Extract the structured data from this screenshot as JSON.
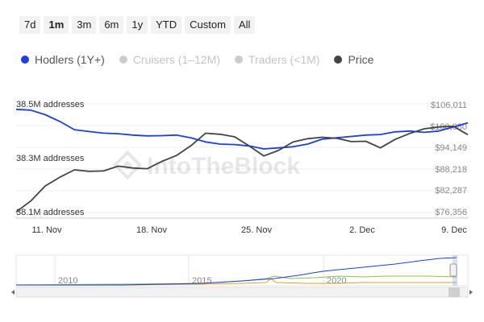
{
  "range_selector": {
    "buttons": [
      "7d",
      "1m",
      "3m",
      "6m",
      "1y",
      "YTD",
      "Custom",
      "All"
    ],
    "active": "1m"
  },
  "legend": [
    {
      "label": "Hodlers (1Y+)",
      "color": "#1a3ee8",
      "active": true
    },
    {
      "label": "Cruisers (1–12M)",
      "color": "#cccccc",
      "active": false
    },
    {
      "label": "Traders (<1M)",
      "color": "#cccccc",
      "active": false
    },
    {
      "label": "Price",
      "color": "#444444",
      "active": true
    }
  ],
  "watermark": "IntoTheBlock",
  "chart_data": {
    "type": "line",
    "title": "",
    "x_ticks": [
      "11. Nov",
      "18. Nov",
      "25. Nov",
      "2. Dec",
      "9. Dec"
    ],
    "x_range": [
      "2024-11-08",
      "2024-12-09"
    ],
    "left_axis": {
      "ticks": [
        "38.5M addresses",
        "38.3M addresses",
        "38.1M addresses"
      ],
      "min": 38.1,
      "max": 38.5,
      "unit": "M addresses"
    },
    "right_axis": {
      "ticks": [
        "$106,011",
        "$100,080",
        "$94,149",
        "$88,218",
        "$82,287",
        "$76,356"
      ],
      "min": 76356,
      "max": 106011
    },
    "grid": true,
    "series": [
      {
        "name": "Hodlers (1Y+)",
        "axis": "left",
        "color": "#1a3ee8",
        "x": [
          "2024-11-08",
          "2024-11-09",
          "2024-11-10",
          "2024-11-11",
          "2024-11-12",
          "2024-11-13",
          "2024-11-14",
          "2024-11-15",
          "2024-11-16",
          "2024-11-17",
          "2024-11-18",
          "2024-11-19",
          "2024-11-20",
          "2024-11-21",
          "2024-11-22",
          "2024-11-23",
          "2024-11-24",
          "2024-11-25",
          "2024-11-26",
          "2024-11-27",
          "2024-11-28",
          "2024-11-29",
          "2024-11-30",
          "2024-12-01",
          "2024-12-02",
          "2024-12-03",
          "2024-12-04",
          "2024-12-05",
          "2024-12-06",
          "2024-12-07",
          "2024-12-08",
          "2024-12-09"
        ],
        "values": [
          38.48,
          38.477,
          38.46,
          38.435,
          38.405,
          38.398,
          38.392,
          38.39,
          38.385,
          38.382,
          38.383,
          38.385,
          38.375,
          38.36,
          38.352,
          38.35,
          38.345,
          38.334,
          38.338,
          38.342,
          38.352,
          38.37,
          38.375,
          38.38,
          38.385,
          38.387,
          38.397,
          38.4,
          38.395,
          38.4,
          38.415,
          38.43
        ]
      },
      {
        "name": "Price",
        "axis": "right",
        "color": "#444444",
        "x": [
          "2024-11-08",
          "2024-11-09",
          "2024-11-10",
          "2024-11-11",
          "2024-11-12",
          "2024-11-13",
          "2024-11-14",
          "2024-11-15",
          "2024-11-16",
          "2024-11-17",
          "2024-11-18",
          "2024-11-19",
          "2024-11-20",
          "2024-11-21",
          "2024-11-22",
          "2024-11-23",
          "2024-11-24",
          "2024-11-25",
          "2024-11-26",
          "2024-11-27",
          "2024-11-28",
          "2024-11-29",
          "2024-11-30",
          "2024-12-01",
          "2024-12-02",
          "2024-12-03",
          "2024-12-04",
          "2024-12-05",
          "2024-12-06",
          "2024-12-07",
          "2024-12-08",
          "2024-12-09"
        ],
        "values": [
          76500,
          79500,
          83600,
          86000,
          88000,
          87600,
          87700,
          89000,
          88500,
          88300,
          90300,
          91900,
          94600,
          98000,
          97700,
          97000,
          94500,
          91800,
          93300,
          95600,
          96500,
          96900,
          96600,
          95700,
          95800,
          94000,
          96300,
          97900,
          99200,
          99700,
          99900,
          97600
        ]
      }
    ]
  },
  "navigator": {
    "year_labels": [
      "2010",
      "2015",
      "2020"
    ]
  }
}
